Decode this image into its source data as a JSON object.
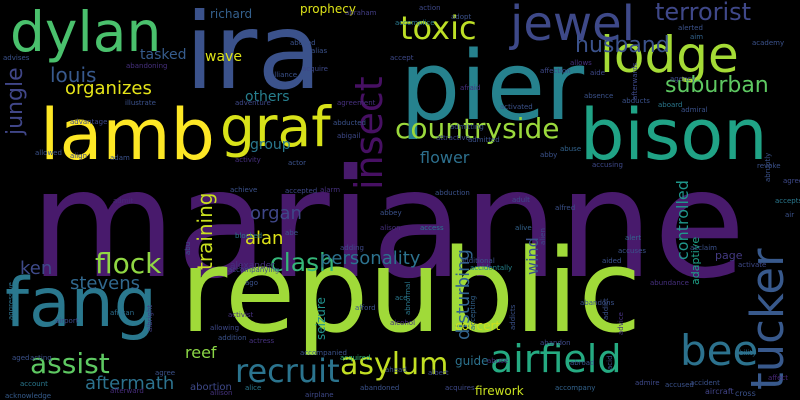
{
  "words": [
    {
      "text": "marianne",
      "color": "#481a6c"
    },
    {
      "text": "republic",
      "color": "#a0da39"
    },
    {
      "text": "pier",
      "color": "#26828e"
    },
    {
      "text": "ira",
      "color": "#3b528b"
    },
    {
      "text": "lamb",
      "color": "#fde725"
    },
    {
      "text": "bison",
      "color": "#20a386"
    },
    {
      "text": "fang",
      "color": "#2a788e"
    },
    {
      "text": "dylan",
      "color": "#4ac16d"
    },
    {
      "text": "graf",
      "color": "#d8e219"
    },
    {
      "text": "lodge",
      "color": "#a5db36"
    },
    {
      "text": "jewel",
      "color": "#3e4989"
    },
    {
      "text": "tucker",
      "color": "#38598c"
    },
    {
      "text": "airfield",
      "color": "#25ab82"
    },
    {
      "text": "bee",
      "color": "#2c728e"
    },
    {
      "text": "insect",
      "color": "#471063"
    },
    {
      "text": "toxic",
      "color": "#bddf26"
    },
    {
      "text": "countryside",
      "color": "#9bd93c"
    },
    {
      "text": "recruit",
      "color": "#2b748e"
    },
    {
      "text": "asylum",
      "color": "#c2df23"
    },
    {
      "text": "clash",
      "color": "#35b779"
    },
    {
      "text": "flock",
      "color": "#90d743"
    },
    {
      "text": "assist",
      "color": "#5ec962"
    },
    {
      "text": "terrorist",
      "color": "#3f4889"
    },
    {
      "text": "suburban",
      "color": "#5ec962"
    },
    {
      "text": "husband",
      "color": "#3b528b"
    },
    {
      "text": "jungle",
      "color": "#404688"
    },
    {
      "text": "louis",
      "color": "#38598c"
    },
    {
      "text": "organizes",
      "color": "#e5e419"
    },
    {
      "text": "training",
      "color": "#cae11f"
    },
    {
      "text": "personality",
      "color": "#2c728e"
    },
    {
      "text": "disturbing",
      "color": "#32648e"
    },
    {
      "text": "stevens",
      "color": "#31688e"
    },
    {
      "text": "ken",
      "color": "#3e4a89"
    },
    {
      "text": "alan",
      "color": "#dde318"
    },
    {
      "text": "organ",
      "color": "#3f4788"
    },
    {
      "text": "flower",
      "color": "#2d708e"
    },
    {
      "text": "controlled",
      "color": "#1f978b"
    },
    {
      "text": "aftermath",
      "color": "#2c728e"
    },
    {
      "text": "reef",
      "color": "#8bd646"
    },
    {
      "text": "wind",
      "color": "#3b528b"
    },
    {
      "text": "others",
      "color": "#277f8e"
    },
    {
      "text": "group",
      "color": "#2a788e"
    },
    {
      "text": "wave",
      "color": "#dde318"
    },
    {
      "text": "tasked",
      "color": "#365c8d"
    },
    {
      "text": "prophecy",
      "color": "#dde318"
    },
    {
      "text": "richard",
      "color": "#34608d"
    },
    {
      "text": "guide",
      "color": "#2c728e"
    },
    {
      "text": "firework",
      "color": "#c8e020"
    },
    {
      "text": "page",
      "color": "#443a83"
    },
    {
      "text": "seizure",
      "color": "#21918c"
    },
    {
      "text": "concert",
      "color": "#cde11d"
    },
    {
      "text": "adaptive",
      "color": "#1fa188"
    },
    {
      "text": "abortion",
      "color": "#3e4989"
    },
    {
      "text": "alexander",
      "color": "#46307e"
    },
    {
      "text": "accompanied",
      "color": "#3b528b"
    },
    {
      "text": "accidentally",
      "color": "#25848e"
    },
    {
      "text": "acquired",
      "color": "#35b779"
    },
    {
      "text": "abandoned",
      "color": "#3b528b"
    },
    {
      "text": "airplane",
      "color": "#3e4989"
    },
    {
      "text": "alice",
      "color": "#2a788e"
    },
    {
      "text": "accompany",
      "color": "#33638d"
    },
    {
      "text": "aircraft",
      "color": "#414487"
    },
    {
      "text": "cross",
      "color": "#3b528b"
    },
    {
      "text": "ability",
      "color": "#2d708e"
    },
    {
      "text": "affect",
      "color": "#482878"
    },
    {
      "text": "acting",
      "color": "#3b528b"
    },
    {
      "text": "account",
      "color": "#2a788e"
    },
    {
      "text": "acknowledge",
      "color": "#365c8d"
    },
    {
      "text": "allison",
      "color": "#46337e"
    },
    {
      "text": "afterward",
      "color": "#472d7b"
    },
    {
      "text": "agree",
      "color": "#3b528b"
    },
    {
      "text": "abraham",
      "color": "#433e85"
    },
    {
      "text": "abandon",
      "color": "#3e4989"
    },
    {
      "text": "addicts",
      "color": "#3b528b"
    },
    {
      "text": "aggressive",
      "color": "#2c728e"
    },
    {
      "text": "african",
      "color": "#2e6e8e"
    },
    {
      "text": "albright",
      "color": "#424086"
    },
    {
      "text": "addition",
      "color": "#3b528b"
    },
    {
      "text": "activist",
      "color": "#46307e"
    },
    {
      "text": "allowing",
      "color": "#3e4989"
    },
    {
      "text": "actress",
      "color": "#46327e"
    },
    {
      "text": "abnormal",
      "color": "#2a788e"
    },
    {
      "text": "alcohol",
      "color": "#46307e"
    },
    {
      "text": "afford",
      "color": "#3b528b"
    },
    {
      "text": "ace",
      "color": "#2a788e"
    },
    {
      "text": "accepting",
      "color": "#33638d"
    },
    {
      "text": "aged",
      "color": "#3b528b"
    },
    {
      "text": "airport",
      "color": "#3e4989"
    },
    {
      "text": "admit",
      "color": "#482878"
    },
    {
      "text": "achieve",
      "color": "#3b528b"
    },
    {
      "text": "accepted",
      "color": "#3e4989"
    },
    {
      "text": "alarm",
      "color": "#46307e"
    },
    {
      "text": "abbey",
      "color": "#3b528b"
    },
    {
      "text": "alive",
      "color": "#33638d"
    },
    {
      "text": "abduction",
      "color": "#3b528b"
    },
    {
      "text": "adult",
      "color": "#3e4989"
    },
    {
      "text": "access",
      "color": "#2a788e"
    },
    {
      "text": "alfred",
      "color": "#3b528b"
    },
    {
      "text": "alien",
      "color": "#3e4989"
    },
    {
      "text": "alert",
      "color": "#33638d"
    },
    {
      "text": "acclaim",
      "color": "#3b528b"
    },
    {
      "text": "abundance",
      "color": "#46307e"
    },
    {
      "text": "activate",
      "color": "#3e4989"
    },
    {
      "text": "abruptly",
      "color": "#3b528b"
    },
    {
      "text": "accepts",
      "color": "#2a788e"
    },
    {
      "text": "air",
      "color": "#3b528b"
    },
    {
      "text": "agreeing",
      "color": "#3e4989"
    },
    {
      "text": "revoke",
      "color": "#3b528b"
    },
    {
      "text": "advice",
      "color": "#46307e"
    },
    {
      "text": "aided",
      "color": "#3b528b"
    },
    {
      "text": "accusing",
      "color": "#3e4989"
    },
    {
      "text": "abby",
      "color": "#3b528b"
    },
    {
      "text": "abuse",
      "color": "#33638d"
    },
    {
      "text": "admitted",
      "color": "#3b528b"
    },
    {
      "text": "accomplice",
      "color": "#2a788e"
    },
    {
      "text": "alliance",
      "color": "#3b528b"
    },
    {
      "text": "acquire",
      "color": "#3e4989"
    },
    {
      "text": "alias",
      "color": "#3b528b"
    },
    {
      "text": "agreement",
      "color": "#46307e"
    },
    {
      "text": "abducted",
      "color": "#3b528b"
    },
    {
      "text": "abigail",
      "color": "#3e4989"
    },
    {
      "text": "abused",
      "color": "#3b528b"
    },
    {
      "text": "actor",
      "color": "#3b528b"
    },
    {
      "text": "activity",
      "color": "#46307e"
    },
    {
      "text": "abe",
      "color": "#3b528b"
    },
    {
      "text": "adding",
      "color": "#3e4989"
    },
    {
      "text": "blocked",
      "color": "#2a788e"
    },
    {
      "text": "abu",
      "color": "#3b528b"
    },
    {
      "text": "align",
      "color": "#3e4989"
    },
    {
      "text": "allowed",
      "color": "#3b528b"
    },
    {
      "text": "advantage",
      "color": "#3e4989"
    },
    {
      "text": "illustrate",
      "color": "#3b528b"
    },
    {
      "text": "adam",
      "color": "#3b528b"
    },
    {
      "text": "adventure",
      "color": "#3e4989"
    },
    {
      "text": "abandoning",
      "color": "#46307e"
    },
    {
      "text": "advises",
      "color": "#3b528b"
    },
    {
      "text": "accept",
      "color": "#3e4989"
    },
    {
      "text": "alerted",
      "color": "#3b528b"
    },
    {
      "text": "aim",
      "color": "#33638d"
    },
    {
      "text": "academy",
      "color": "#3b528b"
    },
    {
      "text": "agency",
      "color": "#3e4989"
    },
    {
      "text": "admiral",
      "color": "#3b528b"
    },
    {
      "text": "aboard",
      "color": "#2a788e"
    },
    {
      "text": "abducts",
      "color": "#3b528b"
    },
    {
      "text": "affection",
      "color": "#3e4989"
    },
    {
      "text": "activated",
      "color": "#3b528b"
    },
    {
      "text": "admitting",
      "color": "#3b528b"
    },
    {
      "text": "afraid",
      "color": "#46307e"
    },
    {
      "text": "absence",
      "color": "#3b528b"
    },
    {
      "text": "afterwards",
      "color": "#3e4989"
    },
    {
      "text": "accused",
      "color": "#3b528b"
    },
    {
      "text": "action",
      "color": "#3e4989"
    },
    {
      "text": "adopt",
      "color": "#3b528b"
    },
    {
      "text": "attractive",
      "color": "#3e4989"
    },
    {
      "text": "ahead",
      "color": "#3b528b"
    },
    {
      "text": "acid",
      "color": "#3b528b"
    },
    {
      "text": "acquires",
      "color": "#3e4989"
    },
    {
      "text": "abroad",
      "color": "#3b528b"
    },
    {
      "text": "abuse",
      "color": "#46307e"
    },
    {
      "text": "accompanying",
      "color": "#3e4989"
    },
    {
      "text": "additional",
      "color": "#3b528b"
    },
    {
      "text": "ago",
      "color": "#3b528b"
    },
    {
      "text": "albert",
      "color": "#3e4989"
    },
    {
      "text": "accident",
      "color": "#3b528b"
    },
    {
      "text": "alison",
      "color": "#46307e"
    },
    {
      "text": "abandons",
      "color": "#3b528b"
    },
    {
      "text": "admire",
      "color": "#3e4989"
    },
    {
      "text": "accuses",
      "color": "#3b528b"
    },
    {
      "text": "aide",
      "color": "#3e4989"
    },
    {
      "text": "addict",
      "color": "#3b528b"
    },
    {
      "text": "allows",
      "color": "#46307e"
    },
    {
      "text": "ad",
      "color": "#3b528b"
    },
    {
      "text": "accompanies",
      "color": "#3e4989"
    },
    {
      "text": "accuse",
      "color": "#3b528b"
    }
  ]
}
